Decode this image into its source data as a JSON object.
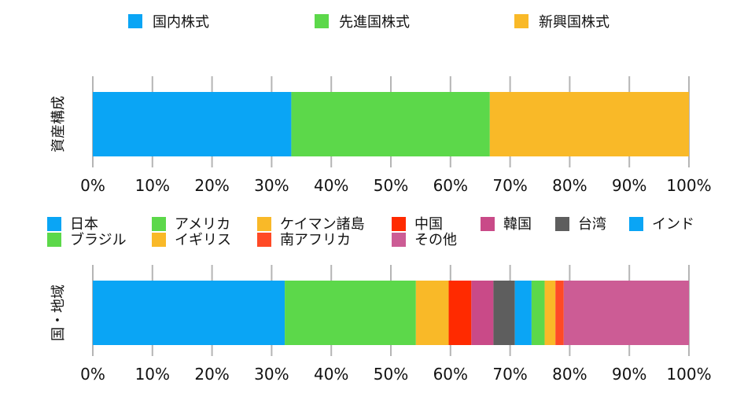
{
  "chart_data": [
    {
      "type": "bar",
      "orientation": "horizontal-stacked",
      "categories": [
        "資産構成"
      ],
      "series": [
        {
          "name": "国内株式",
          "values": [
            33.3
          ],
          "color": "#0aa5f5"
        },
        {
          "name": "先進国株式",
          "values": [
            33.3
          ],
          "color": "#5cd84a"
        },
        {
          "name": "新興国株式",
          "values": [
            33.4
          ],
          "color": "#f9b928"
        }
      ],
      "xlim": [
        0,
        100
      ],
      "xticks": [
        "0%",
        "10%",
        "20%",
        "30%",
        "40%",
        "50%",
        "60%",
        "70%",
        "80%",
        "90%",
        "100%"
      ],
      "ylabel": "資産構成",
      "legend": "top",
      "grid": true
    },
    {
      "type": "bar",
      "orientation": "horizontal-stacked",
      "categories": [
        "国・地域"
      ],
      "series": [
        {
          "name": "日本",
          "values": [
            32.2
          ],
          "color": "#0aa5f5"
        },
        {
          "name": "アメリカ",
          "values": [
            22.0
          ],
          "color": "#5cd84a"
        },
        {
          "name": "ケイマン諸島",
          "values": [
            5.5
          ],
          "color": "#f9b928"
        },
        {
          "name": "中国",
          "values": [
            3.8
          ],
          "color": "#ff2a00"
        },
        {
          "name": "韓国",
          "values": [
            3.7
          ],
          "color": "#c94a88"
        },
        {
          "name": "台湾",
          "values": [
            3.6
          ],
          "color": "#5e5e5e"
        },
        {
          "name": "インド",
          "values": [
            2.8
          ],
          "color": "#0aa5f5"
        },
        {
          "name": "ブラジル",
          "values": [
            2.2
          ],
          "color": "#5cd84a"
        },
        {
          "name": "イギリス",
          "values": [
            1.8
          ],
          "color": "#f9b928"
        },
        {
          "name": "南アフリカ",
          "values": [
            1.4
          ],
          "color": "#ff4a26"
        },
        {
          "name": "その他",
          "values": [
            21.0
          ],
          "color": "#cc5c95"
        }
      ],
      "xlim": [
        0,
        100
      ],
      "xticks": [
        "0%",
        "10%",
        "20%",
        "30%",
        "40%",
        "50%",
        "60%",
        "70%",
        "80%",
        "90%",
        "100%"
      ],
      "ylabel": "国・地域",
      "legend": "top",
      "grid": true
    }
  ]
}
